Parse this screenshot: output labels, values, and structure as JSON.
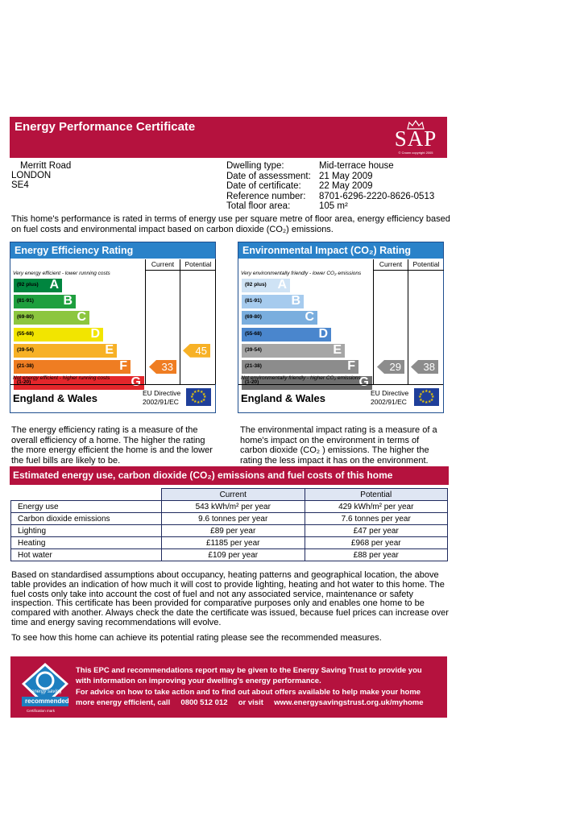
{
  "header": {
    "title": "Energy Performance Certificate",
    "logo_text": "SAP",
    "logo_copyright": "© Crown copyright 2005"
  },
  "address": [
    "Merritt Road",
    "LONDON",
    "SE4"
  ],
  "details": [
    {
      "label": "Dwelling type:",
      "value": "Mid-terrace house"
    },
    {
      "label": "Date of assessment:",
      "value": "21 May 2009"
    },
    {
      "label": "Date of certificate:",
      "value": "22 May 2009"
    },
    {
      "label": "Reference number:",
      "value": "8701-6296-2220-8626-0513"
    },
    {
      "label": "Total floor area:",
      "value": "105 m²"
    }
  ],
  "intro": "This home's performance is rated in terms of energy use per square metre of floor area, energy efficiency based on fuel costs and environmental impact based on carbon dioxide (CO₂) emissions.",
  "energy_rating": {
    "title": "Energy Efficiency Rating",
    "col_current": "Current",
    "col_potential": "Potential",
    "top_caption": "Very energy efficient - lower running costs",
    "bottom_caption": "Not energy efficient - higher running costs",
    "bands": [
      {
        "range": "(92 plus)",
        "letter": "A",
        "color": "#00853f"
      },
      {
        "range": "(81-91)",
        "letter": "B",
        "color": "#1e9f3e"
      },
      {
        "range": "(69-80)",
        "letter": "C",
        "color": "#8cc63f"
      },
      {
        "range": "(55-68)",
        "letter": "D",
        "color": "#f2e500"
      },
      {
        "range": "(39-54)",
        "letter": "E",
        "color": "#f7b126"
      },
      {
        "range": "(21-38)",
        "letter": "F",
        "color": "#ef7d22"
      },
      {
        "range": "(1-20)",
        "letter": "G",
        "color": "#e3262b"
      }
    ],
    "current": "33",
    "potential": "45",
    "current_color": "#ef7d22",
    "potential_color": "#f7b126",
    "region": "England & Wales",
    "directive": "EU Directive\n2002/91/EC"
  },
  "env_rating": {
    "title": "Environmental Impact (CO₂) Rating",
    "col_current": "Current",
    "col_potential": "Potential",
    "top_caption": "Very environmentally friendly - lower CO₂ emissions",
    "bottom_caption": "Not environmentally friendly - higher CO₂ emissions",
    "bands": [
      {
        "range": "(92 plus)",
        "letter": "A",
        "color": "#cfe3f5"
      },
      {
        "range": "(81-91)",
        "letter": "B",
        "color": "#a6cbee"
      },
      {
        "range": "(69-80)",
        "letter": "C",
        "color": "#7aaede"
      },
      {
        "range": "(55-68)",
        "letter": "D",
        "color": "#4a86cd"
      },
      {
        "range": "(39-54)",
        "letter": "E",
        "color": "#a6a6a6"
      },
      {
        "range": "(21-38)",
        "letter": "F",
        "color": "#8c8c8c"
      },
      {
        "range": "(1-20)",
        "letter": "G",
        "color": "#6e6e6e"
      }
    ],
    "current": "29",
    "potential": "38",
    "current_color": "#8c8c8c",
    "potential_color": "#8c8c8c",
    "region": "England & Wales",
    "directive": "EU Directive\n2002/91/EC"
  },
  "energy_desc": "The energy efficiency rating is a measure of the overall efficiency of a home. The higher the rating the more energy efficient the home is and the lower the fuel bills are likely to be.",
  "env_desc": "The environmental impact rating is a measure of a home's impact on the environment in terms of carbon dioxide (CO₂ ) emissions. The higher the rating the less impact it has on the environment.",
  "estimates": {
    "title": "Estimated energy use, carbon dioxide (CO₂) emissions and fuel costs of this home",
    "col_current": "Current",
    "col_potential": "Potential",
    "rows": [
      {
        "label": "Energy use",
        "current": "543 kWh/m² per year",
        "potential": "429 kWh/m² per year"
      },
      {
        "label": "Carbon dioxide emissions",
        "current": "9.6 tonnes per year",
        "potential": "7.6 tonnes per year"
      },
      {
        "label": "Lighting",
        "current": "£89 per year",
        "potential": "£47 per year"
      },
      {
        "label": "Heating",
        "current": "£1185 per year",
        "potential": "£968 per year"
      },
      {
        "label": "Hot water",
        "current": "£109 per year",
        "potential": "£88 per year"
      }
    ]
  },
  "notes": "Based on standardised assumptions about occupancy, heating patterns and geographical location, the above table provides an indication of how much it will cost to provide lighting, heating and hot water to this home. The fuel costs only take into account the cost of fuel and not any associated service, maintenance or safety inspection.  This certificate has been provided for comparative purposes only and enables one home to be compared with another.  Always check the date the certificate was issued, because fuel prices can increase over time and energy saving recommendations will evolve.",
  "measures_text": "To see how this home can achieve its potential rating please see the recommended measures.",
  "trust": {
    "logo_text_1": "energy saving",
    "logo_text_2": "recommended",
    "logo_caption": "Certification mark",
    "line1": "This EPC and recommendations report may be given to the Energy Saving Trust to provide you",
    "line2": "with information on improving your dwelling's energy performance.",
    "line3": "For advice on how to take action and to find out about offers available to help make your home",
    "line4": "more energy efficient, call     0800 512 012     or visit     www.energysavingstrust.org.uk/myhome"
  }
}
